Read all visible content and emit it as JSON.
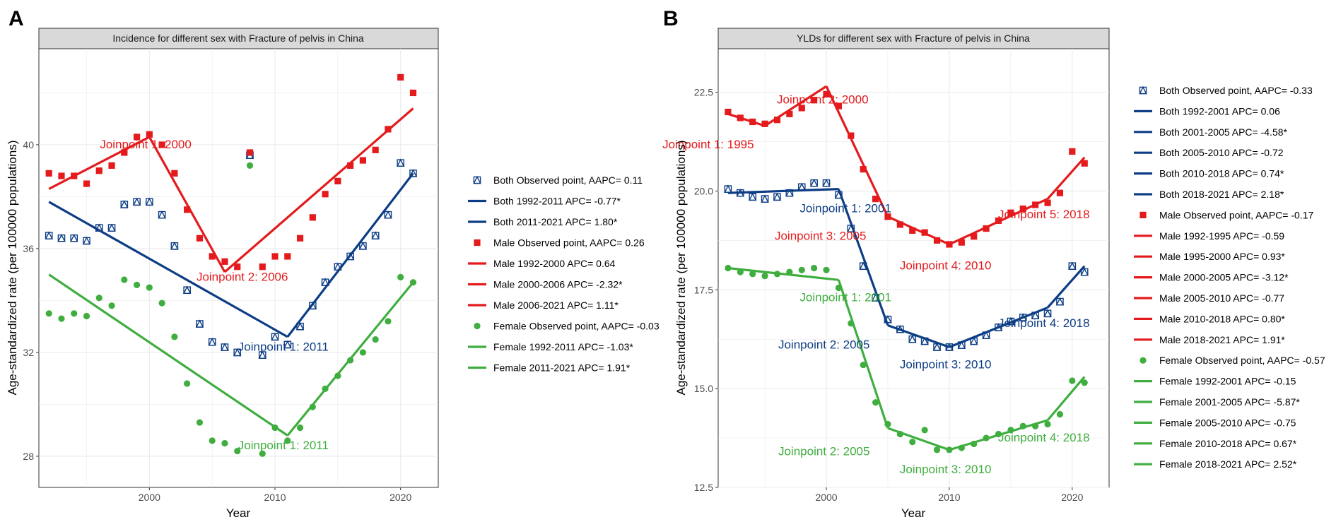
{
  "chart_data": [
    {
      "type": "line",
      "panel_letter": "A",
      "title": "Incidence for different sex with Fracture of pelvis in China",
      "xlabel": "Year",
      "ylabel": "Age-standardized rate (per 100000 populations)",
      "xlim": [
        1991.2,
        2023.0
      ],
      "ylim": [
        26.8,
        43.7
      ],
      "xticks": [
        2000,
        2010,
        2020
      ],
      "yticks": [
        28,
        32,
        36,
        40
      ],
      "legend_position": "right",
      "colors": {
        "Both": "#0d3d85",
        "Male": "#e41a1c",
        "Female": "#3fae3f"
      },
      "series": [
        {
          "name": "Both",
          "marker": "triangle-square",
          "x": [
            1992,
            1993,
            1994,
            1995,
            1996,
            1997,
            1998,
            1999,
            2000,
            2001,
            2002,
            2003,
            2004,
            2005,
            2006,
            2007,
            2008,
            2009,
            2010,
            2011,
            2012,
            2013,
            2014,
            2015,
            2016,
            2017,
            2018,
            2019,
            2020,
            2021
          ],
          "observed": [
            36.5,
            36.4,
            36.4,
            36.3,
            36.8,
            36.8,
            37.7,
            37.8,
            37.8,
            37.3,
            36.1,
            34.4,
            33.1,
            32.4,
            32.2,
            32.0,
            39.6,
            31.9,
            32.6,
            32.3,
            33.0,
            33.8,
            34.7,
            35.3,
            35.7,
            36.1,
            36.5,
            37.3,
            39.3,
            38.9
          ],
          "segments": [
            [
              1992,
              37.8,
              2011,
              32.6
            ],
            [
              2011,
              32.6,
              2021,
              38.9
            ]
          ]
        },
        {
          "name": "Male",
          "marker": "square",
          "x": [
            1992,
            1993,
            1994,
            1995,
            1996,
            1997,
            1998,
            1999,
            2000,
            2001,
            2002,
            2003,
            2004,
            2005,
            2006,
            2007,
            2008,
            2009,
            2010,
            2011,
            2012,
            2013,
            2014,
            2015,
            2016,
            2017,
            2018,
            2019,
            2020,
            2021
          ],
          "observed": [
            38.9,
            38.8,
            38.8,
            38.5,
            39.0,
            39.2,
            39.7,
            40.3,
            40.4,
            40.0,
            38.9,
            37.5,
            36.4,
            35.7,
            35.5,
            35.3,
            39.7,
            35.3,
            35.7,
            35.7,
            36.4,
            37.2,
            38.1,
            38.6,
            39.2,
            39.4,
            39.8,
            40.6,
            42.6,
            42.0
          ],
          "segments": [
            [
              1992,
              38.3,
              2000,
              40.3
            ],
            [
              2000,
              40.3,
              2006,
              35.1
            ],
            [
              2006,
              35.1,
              2021,
              41.4
            ]
          ]
        },
        {
          "name": "Female",
          "marker": "circle",
          "x": [
            1992,
            1993,
            1994,
            1995,
            1996,
            1997,
            1998,
            1999,
            2000,
            2001,
            2002,
            2003,
            2004,
            2005,
            2006,
            2007,
            2008,
            2009,
            2010,
            2011,
            2012,
            2013,
            2014,
            2015,
            2016,
            2017,
            2018,
            2019,
            2020,
            2021
          ],
          "observed": [
            33.5,
            33.3,
            33.5,
            33.4,
            34.1,
            33.8,
            34.8,
            34.6,
            34.5,
            33.9,
            32.6,
            30.8,
            29.3,
            28.6,
            28.5,
            28.2,
            39.2,
            28.1,
            29.1,
            28.6,
            29.1,
            29.9,
            30.6,
            31.1,
            31.7,
            32.0,
            32.5,
            33.2,
            34.9,
            34.7
          ],
          "segments": [
            [
              1992,
              35.0,
              2011,
              28.8
            ],
            [
              2011,
              28.8,
              2021,
              34.7
            ]
          ]
        }
      ],
      "annotations": [
        {
          "text": "Joinpoint 1: 2000",
          "series": "Male",
          "x": 2000,
          "y": 40.0
        },
        {
          "text": "Joinpoint 2: 2006",
          "series": "Male",
          "x": 2006,
          "y": 34.9
        },
        {
          "text": "Joinpoint 1: 2011",
          "series": "Both",
          "x": 2011,
          "y": 32.2
        },
        {
          "text": "Joinpoint 1: 2011",
          "series": "Female",
          "x": 2011,
          "y": 28.4
        }
      ],
      "legend": [
        {
          "label": "Both Observed point, AAPC= 0.11",
          "series": "Both",
          "kind": "point"
        },
        {
          "label": "Both 1992-2011 APC= -0.77*",
          "series": "Both",
          "kind": "line"
        },
        {
          "label": "Both 2011-2021 APC= 1.80*",
          "series": "Both",
          "kind": "line"
        },
        {
          "label": "Male Observed point, AAPC= 0.26",
          "series": "Male",
          "kind": "point"
        },
        {
          "label": "Male 1992-2000 APC= 0.64",
          "series": "Male",
          "kind": "line"
        },
        {
          "label": "Male 2000-2006 APC= -2.32*",
          "series": "Male",
          "kind": "line"
        },
        {
          "label": "Male 2006-2021 APC= 1.11*",
          "series": "Male",
          "kind": "line"
        },
        {
          "label": "Female Observed point, AAPC= -0.03",
          "series": "Female",
          "kind": "point"
        },
        {
          "label": "Female 1992-2011 APC= -1.03*",
          "series": "Female",
          "kind": "line"
        },
        {
          "label": "Female 2011-2021 APC= 1.91*",
          "series": "Female",
          "kind": "line"
        }
      ]
    },
    {
      "type": "line",
      "panel_letter": "B",
      "title": "YLDs for different sex with Fracture of pelvis in China",
      "xlabel": "Year",
      "ylabel": "Age-standardized rate (per 100000 populations)",
      "xlim": [
        1991.2,
        2023.0
      ],
      "ylim": [
        12.5,
        23.6
      ],
      "xticks": [
        2000,
        2010,
        2020
      ],
      "yticks": [
        12.5,
        15.0,
        17.5,
        20.0,
        22.5
      ],
      "ytick_labels": [
        "12.5",
        "15.0",
        "17.5",
        "20.0",
        "22.5"
      ],
      "legend_position": "right",
      "colors": {
        "Both": "#0d3d85",
        "Male": "#e41a1c",
        "Female": "#3fae3f"
      },
      "series": [
        {
          "name": "Both",
          "marker": "triangle-square",
          "x": [
            1992,
            1993,
            1994,
            1995,
            1996,
            1997,
            1998,
            1999,
            2000,
            2001,
            2002,
            2003,
            2004,
            2005,
            2006,
            2007,
            2008,
            2009,
            2010,
            2011,
            2012,
            2013,
            2014,
            2015,
            2016,
            2017,
            2018,
            2019,
            2020,
            2021
          ],
          "observed": [
            20.05,
            19.95,
            19.85,
            19.8,
            19.85,
            19.95,
            20.1,
            20.2,
            20.2,
            19.9,
            19.05,
            18.1,
            17.3,
            16.75,
            16.5,
            16.25,
            16.2,
            16.05,
            16.05,
            16.1,
            16.2,
            16.35,
            16.55,
            16.7,
            16.8,
            16.85,
            16.9,
            17.2,
            18.1,
            17.95
          ],
          "segments": [
            [
              1992,
              19.95,
              2001,
              20.05
            ],
            [
              2001,
              20.05,
              2005,
              16.6
            ],
            [
              2005,
              16.6,
              2010,
              16.05
            ],
            [
              2010,
              16.05,
              2018,
              17.05
            ],
            [
              2018,
              17.05,
              2021,
              18.1
            ]
          ]
        },
        {
          "name": "Male",
          "marker": "square",
          "x": [
            1992,
            1993,
            1994,
            1995,
            1996,
            1997,
            1998,
            1999,
            2000,
            2001,
            2002,
            2003,
            2004,
            2005,
            2006,
            2007,
            2008,
            2009,
            2010,
            2011,
            2012,
            2013,
            2014,
            2015,
            2016,
            2017,
            2018,
            2019,
            2020,
            2021
          ],
          "observed": [
            22.0,
            21.85,
            21.75,
            21.7,
            21.8,
            21.95,
            22.1,
            22.3,
            22.45,
            22.15,
            21.4,
            20.55,
            19.8,
            19.35,
            19.15,
            19.0,
            18.95,
            18.75,
            18.65,
            18.7,
            18.85,
            19.05,
            19.25,
            19.45,
            19.55,
            19.65,
            19.7,
            19.95,
            21.0,
            20.7
          ],
          "segments": [
            [
              1992,
              21.95,
              1995,
              21.65
            ],
            [
              1995,
              21.65,
              2000,
              22.65
            ],
            [
              2000,
              22.65,
              2005,
              19.35
            ],
            [
              2005,
              19.35,
              2010,
              18.65
            ],
            [
              2010,
              18.65,
              2018,
              19.8
            ],
            [
              2018,
              19.8,
              2021,
              20.85
            ]
          ]
        },
        {
          "name": "Female",
          "marker": "circle",
          "x": [
            1992,
            1993,
            1994,
            1995,
            1996,
            1997,
            1998,
            1999,
            2000,
            2001,
            2002,
            2003,
            2004,
            2005,
            2006,
            2007,
            2008,
            2009,
            2010,
            2011,
            2012,
            2013,
            2014,
            2015,
            2016,
            2017,
            2018,
            2019,
            2020,
            2021
          ],
          "observed": [
            18.05,
            17.95,
            17.9,
            17.85,
            17.9,
            17.95,
            18.0,
            18.05,
            18.0,
            17.55,
            16.65,
            15.6,
            14.65,
            14.1,
            13.85,
            13.65,
            13.95,
            13.45,
            13.45,
            13.5,
            13.6,
            13.75,
            13.85,
            13.95,
            14.05,
            14.05,
            14.1,
            14.35,
            15.2,
            15.15
          ],
          "segments": [
            [
              1992,
              18.05,
              2001,
              17.75
            ],
            [
              2001,
              17.75,
              2005,
              14.0
            ],
            [
              2005,
              14.0,
              2010,
              13.45
            ],
            [
              2010,
              13.45,
              2018,
              14.2
            ],
            [
              2018,
              14.2,
              2021,
              15.3
            ]
          ]
        }
      ],
      "annotations": [
        {
          "text": "Joinpoint 1: 1995",
          "series": "Male",
          "x": 1995,
          "y": 21.15
        },
        {
          "text": "Joinpoint 2: 2000",
          "series": "Male",
          "x": 2000,
          "y": 22.3
        },
        {
          "text": "Joinpoint 3: 2005",
          "series": "Male",
          "x": 2005,
          "y": 18.85
        },
        {
          "text": "Joinpoint 4: 2010",
          "series": "Male",
          "x": 2010,
          "y": 18.1
        },
        {
          "text": "Joinpoint 5: 2018",
          "series": "Male",
          "x": 2018,
          "y": 19.4
        },
        {
          "text": "Joinpoint 1: 2001",
          "series": "Both",
          "x": 2001,
          "y": 19.55
        },
        {
          "text": "Joinpoint 2: 2005",
          "series": "Both",
          "x": 2005,
          "y": 16.1
        },
        {
          "text": "Joinpoint 3: 2010",
          "series": "Both",
          "x": 2010,
          "y": 15.6
        },
        {
          "text": "Joinpoint 4: 2018",
          "series": "Both",
          "x": 2018,
          "y": 16.65
        },
        {
          "text": "Joinpoint 1: 2001",
          "series": "Female",
          "x": 2001,
          "y": 17.3
        },
        {
          "text": "Joinpoint 2: 2005",
          "series": "Female",
          "x": 2005,
          "y": 13.4
        },
        {
          "text": "Joinpoint 3: 2010",
          "series": "Female",
          "x": 2010,
          "y": 12.95
        },
        {
          "text": "Joinpoint 4: 2018",
          "series": "Female",
          "x": 2018,
          "y": 13.75
        }
      ],
      "legend": [
        {
          "label": "Both Observed point, AAPC= -0.33",
          "series": "Both",
          "kind": "point"
        },
        {
          "label": "Both 1992-2001 APC= 0.06",
          "series": "Both",
          "kind": "line"
        },
        {
          "label": "Both 2001-2005 APC= -4.58*",
          "series": "Both",
          "kind": "line"
        },
        {
          "label": "Both 2005-2010 APC= -0.72",
          "series": "Both",
          "kind": "line"
        },
        {
          "label": "Both 2010-2018 APC= 0.74*",
          "series": "Both",
          "kind": "line"
        },
        {
          "label": "Both 2018-2021 APC= 2.18*",
          "series": "Both",
          "kind": "line"
        },
        {
          "label": "Male Observed point, AAPC= -0.17",
          "series": "Male",
          "kind": "point"
        },
        {
          "label": "Male 1992-1995 APC= -0.59",
          "series": "Male",
          "kind": "line"
        },
        {
          "label": "Male 1995-2000 APC= 0.93*",
          "series": "Male",
          "kind": "line"
        },
        {
          "label": "Male 2000-2005 APC= -3.12*",
          "series": "Male",
          "kind": "line"
        },
        {
          "label": "Male 2005-2010 APC= -0.77",
          "series": "Male",
          "kind": "line"
        },
        {
          "label": "Male 2010-2018 APC= 0.80*",
          "series": "Male",
          "kind": "line"
        },
        {
          "label": "Male 2018-2021 APC= 1.91*",
          "series": "Male",
          "kind": "line"
        },
        {
          "label": "Female Observed point, AAPC= -0.57",
          "series": "Female",
          "kind": "point"
        },
        {
          "label": "Female 1992-2001 APC= -0.15",
          "series": "Female",
          "kind": "line"
        },
        {
          "label": "Female 2001-2005 APC= -5.87*",
          "series": "Female",
          "kind": "line"
        },
        {
          "label": "Female 2005-2010 APC= -0.75",
          "series": "Female",
          "kind": "line"
        },
        {
          "label": "Female 2010-2018 APC= 0.67*",
          "series": "Female",
          "kind": "line"
        },
        {
          "label": "Female 2018-2021 APC= 2.52*",
          "series": "Female",
          "kind": "line"
        }
      ]
    }
  ]
}
